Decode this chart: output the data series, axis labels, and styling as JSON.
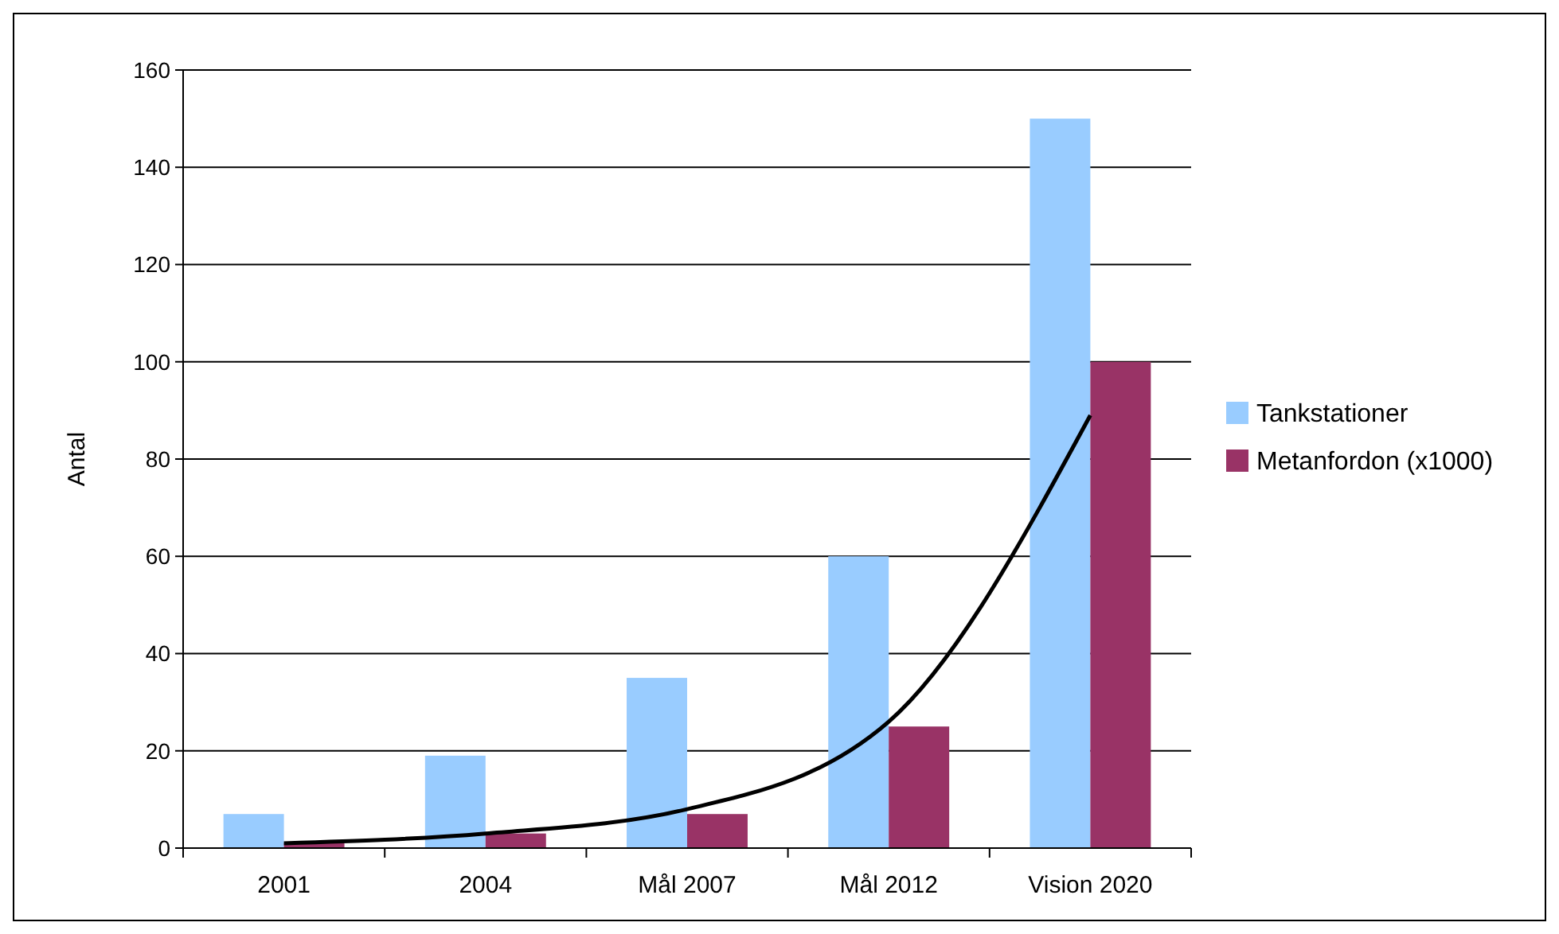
{
  "chart_data": {
    "type": "bar",
    "ylabel": "Antal",
    "categories": [
      "2001",
      "2004",
      "Mål 2007",
      "Mål 2012",
      "Vision 2020"
    ],
    "series": [
      {
        "name": "Tankstationer",
        "color": "#99ccff",
        "values": [
          7,
          19,
          35,
          60,
          150
        ]
      },
      {
        "name": "Metanfordon (x1000)",
        "color": "#993366",
        "values": [
          1,
          3,
          7,
          25,
          100
        ]
      },
      {
        "type": "line",
        "color": "#000000",
        "values": [
          1,
          3,
          8,
          26,
          89
        ]
      }
    ],
    "ylim": [
      0,
      160
    ],
    "yticks": [
      0,
      20,
      40,
      60,
      80,
      100,
      120,
      140,
      160
    ],
    "grid": "y",
    "legend": "right"
  }
}
